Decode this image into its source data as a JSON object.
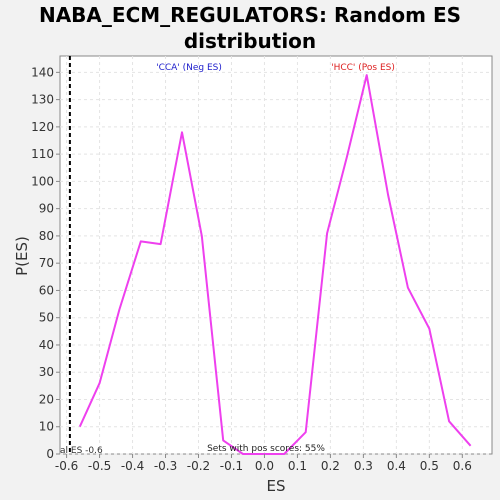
{
  "chart_data": {
    "type": "line",
    "title": [
      "NABA_ECM_REGULATORS: Random ES",
      "distribution"
    ],
    "xlabel": "ES",
    "ylabel": "P(ES)",
    "xlim": [
      -0.62,
      0.69
    ],
    "ylim": [
      0,
      146
    ],
    "x_ticks": [
      -0.6,
      -0.5,
      -0.4,
      -0.3,
      -0.2,
      -0.1,
      0.0,
      0.1,
      0.2,
      0.3,
      0.4,
      0.5,
      0.6
    ],
    "x_tick_labels": [
      "-0.6",
      "-0.5",
      "-0.4",
      "-0.3",
      "-0.2",
      "-0.1",
      "0.0",
      "0.1",
      "0.2",
      "0.3",
      "0.4",
      "0.5",
      "0.6"
    ],
    "y_ticks": [
      0,
      10,
      20,
      30,
      40,
      50,
      60,
      70,
      80,
      90,
      100,
      110,
      120,
      130,
      140
    ],
    "y_tick_labels": [
      "0",
      "10",
      "20",
      "30",
      "40",
      "50",
      "60",
      "70",
      "80",
      "90",
      "100",
      "110",
      "120",
      "130",
      "140"
    ],
    "grid": true,
    "series": [
      {
        "color": "#ee40ee",
        "x": [
          -0.56,
          -0.5,
          -0.44,
          -0.375,
          -0.315,
          -0.25,
          -0.19,
          -0.125,
          -0.065,
          0.0,
          0.06,
          0.125,
          0.19,
          0.25,
          0.31,
          0.375,
          0.435,
          0.5,
          0.56,
          0.625
        ],
        "y": [
          10,
          26,
          53,
          78,
          77,
          118,
          80,
          5,
          0,
          0,
          0,
          8,
          81,
          109,
          139,
          95,
          61,
          46,
          12,
          3
        ]
      }
    ],
    "reference_line": {
      "x": -0.59,
      "style": "dashed",
      "color": "#000000",
      "label": "al ES -0.6"
    },
    "annotations": {
      "neg_label": "'CCA' (Neg ES)",
      "neg_color": "#2020cc",
      "pos_label": "'HCC' (Pos ES)",
      "pos_color": "#dd2020",
      "footer": "Sets with pos scores: 55%"
    }
  }
}
